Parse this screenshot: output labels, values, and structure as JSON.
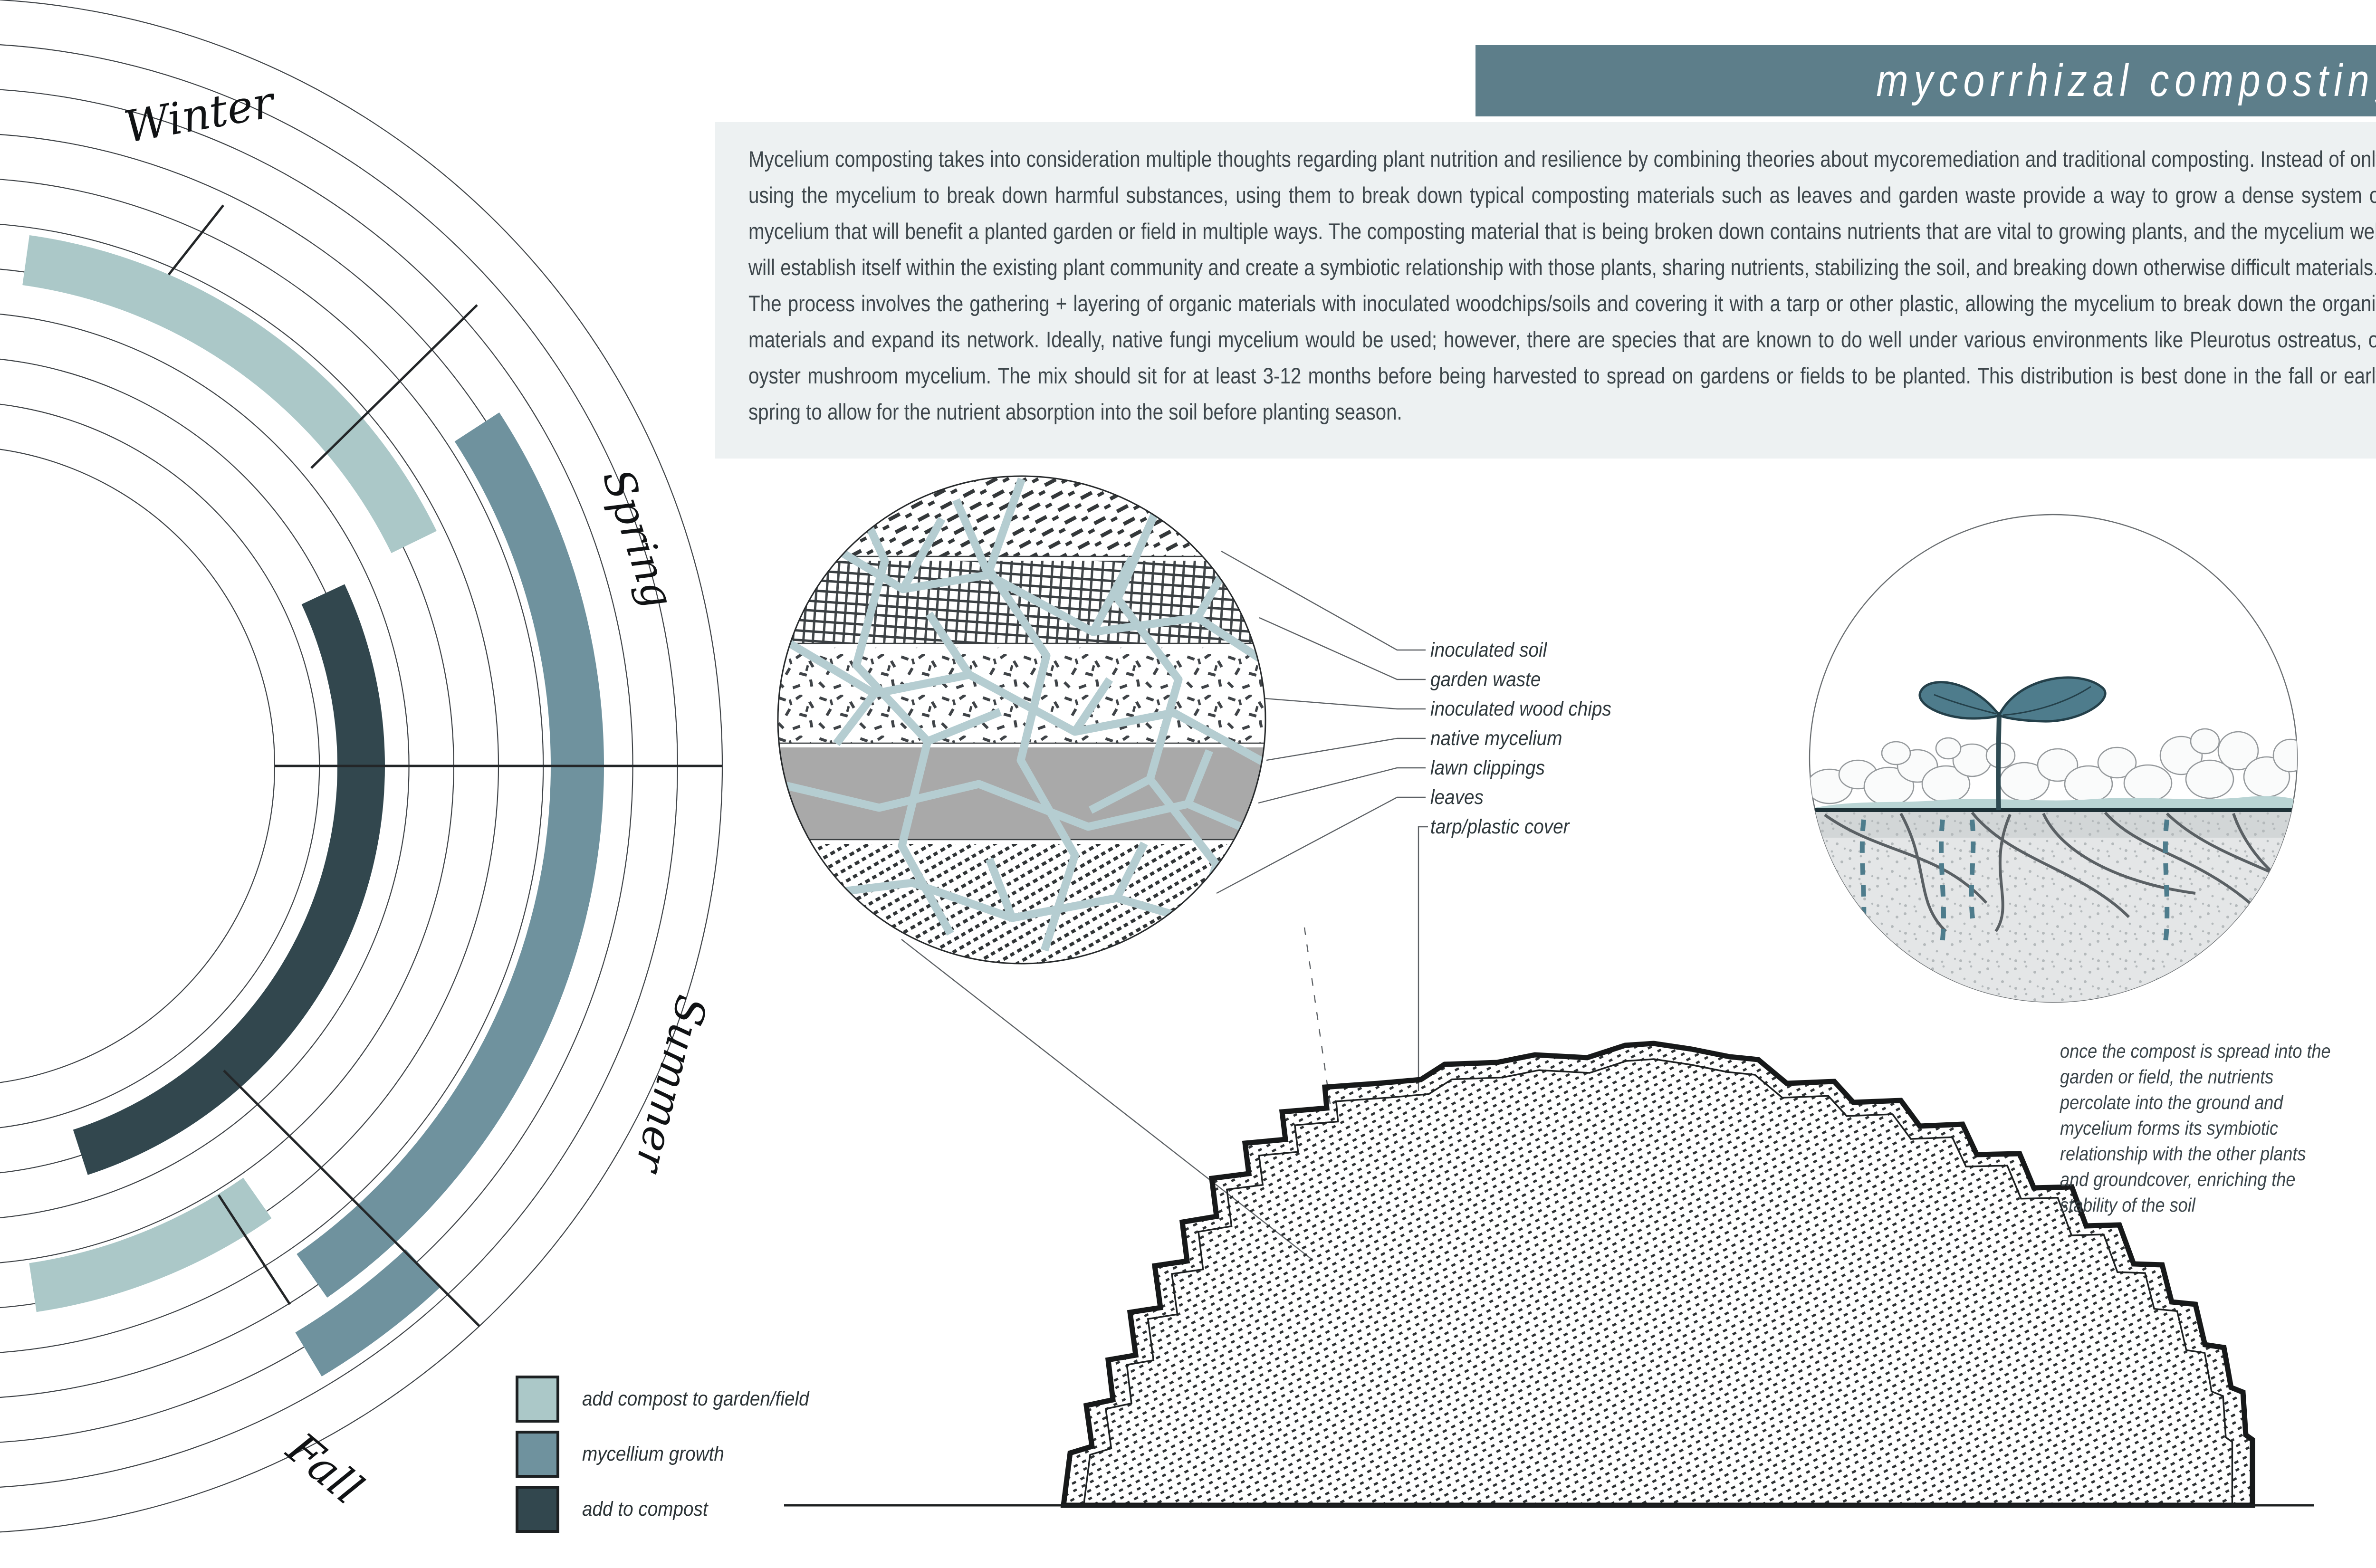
{
  "title": "mycorrhizal composting",
  "intro": {
    "paragraph1": "Mycelium composting takes into consideration multiple thoughts regarding plant nutrition and resilience by combining theories about mycoremediation and traditional composting. Instead of only using the mycelium to break down harmful substances, using them to break down typical composting materials such as leaves and garden waste provide a way to grow a dense system of mycelium that will benefit a planted garden or field in multiple ways. The composting material that is being broken down contains nutrients that are vital to growing plants, and the mycelium web will establish itself within the existing plant community and create a symbiotic relationship with those plants, sharing nutrients, stabilizing the soil, and breaking down otherwise difficult materials.",
    "paragraph2": "The process involves the gathering + layering of organic materials with inoculated woodchips/soils and covering it with a tarp or other plastic, allowing the mycelium to break down the organic materials and expand its network. Ideally, native fungi mycelium would be used; however, there are species that are known to do well under various environments like Pleurotus ostreatus, or oyster mushroom mycelium. The mix should sit for at least 3-12 months before being harvested to spread on gardens or fields to be planted. This distribution is best done in the fall or early spring to allow for the nutrient absorption into the soil before planting season."
  },
  "seasons": {
    "winter": "Winter",
    "spring": "Spring",
    "summer": "Summer",
    "fall": "Fall"
  },
  "legend": {
    "items": [
      {
        "label": "add compost to garden/field",
        "color": "#abc8c8"
      },
      {
        "label": "mycellium growth",
        "color": "#6f929e"
      },
      {
        "label": "add to compost",
        "color": "#32474e"
      }
    ]
  },
  "layer_labels": [
    "inoculated soil",
    "garden waste",
    "inoculated wood chips",
    "native mycelium",
    "lawn clippings",
    "leaves",
    "tarp/plastic cover"
  ],
  "caption": "once the compost is spread into the garden or field, the nutrients percolate into the ground and mycelium forms its symbiotic relationship with the other plants and groundcover, enriching the stability of the soil",
  "colors": {
    "banner": "#5d7e8a",
    "panel": "#edf1f2",
    "light_teal": "#abc8c8",
    "medium_teal": "#6f929e",
    "dark_slate": "#32474e",
    "mycelium_web": "#b5cdd1",
    "text": "#3d464b"
  },
  "chart_data": {
    "type": "other",
    "subtype": "radial-seasonal-compost-calendar",
    "categories": [
      "Winter",
      "Spring",
      "Summer",
      "Fall"
    ],
    "center": [
      -95,
      1612
    ],
    "rings": {
      "count": 11,
      "r_min": 673,
      "r_max": 1615
    },
    "dividers": [
      [
        355,
        578,
        470,
        432
      ],
      [
        655,
        985,
        1004,
        642
      ],
      [
        578,
        1612,
        1520,
        1612
      ],
      [
        471,
        2253,
        1009,
        2791
      ],
      [
        460,
        2515,
        610,
        2745
      ]
    ],
    "series": [
      {
        "name": "add compost to garden/field",
        "color": "#abc8c8",
        "arcs": [
          {
            "season_span": "Winter",
            "radius": 1075,
            "width": 106,
            "angle_deg": [
              -82,
              -26
            ]
          },
          {
            "season_span": "Fall",
            "radius": 1110,
            "width": 104,
            "angle_deg": [
              55,
              81.5
            ]
          }
        ]
      },
      {
        "name": "mycellium growth",
        "color": "#6f929e",
        "arcs": [
          {
            "season_span": "Spring-Summer",
            "radius": 1310,
            "width": 112,
            "angle_deg": [
              -33,
              55
            ]
          },
          {
            "season_span": "Fall",
            "radius": 1445,
            "width": 108,
            "angle_deg": [
              47,
              59
            ]
          }
        ]
      },
      {
        "name": "add to compost",
        "color": "#32474e",
        "arcs": [
          {
            "season_span": "Spring-Fall",
            "radius": 855,
            "width": 100,
            "angle_deg": [
              -25,
              72
            ]
          }
        ]
      }
    ]
  }
}
